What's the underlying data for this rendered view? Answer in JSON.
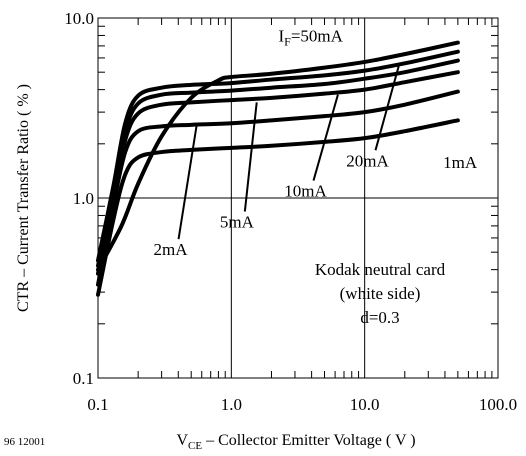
{
  "figure_id": "96 12001",
  "chart_data": {
    "type": "line",
    "title": "",
    "xlabel": {
      "main": "V",
      "sub": "CE",
      "rest": " – Collector Emitter Voltage ( V )"
    },
    "ylabel": "CTR – Current Transfer Ratio ( % )",
    "x_scale": "log",
    "y_scale": "log",
    "xlim": [
      0.1,
      100.0
    ],
    "ylim": [
      0.1,
      10.0
    ],
    "x_ticks": [
      {
        "v": 0.1,
        "label": "0.1"
      },
      {
        "v": 1.0,
        "label": "1.0"
      },
      {
        "v": 10.0,
        "label": "10.0"
      },
      {
        "v": 100.0,
        "label": "100.0"
      }
    ],
    "y_ticks": [
      {
        "v": 0.1,
        "label": "0.1"
      },
      {
        "v": 1.0,
        "label": "1.0"
      },
      {
        "v": 10.0,
        "label": "10.0"
      }
    ],
    "grid": "major",
    "series": [
      {
        "name": "1mA",
        "points": [
          [
            0.1,
            0.29
          ],
          [
            0.13,
            0.75
          ],
          [
            0.16,
            1.35
          ],
          [
            0.2,
            1.68
          ],
          [
            0.3,
            1.8
          ],
          [
            0.5,
            1.85
          ],
          [
            1.0,
            1.9
          ],
          [
            2.0,
            1.95
          ],
          [
            5.0,
            2.05
          ],
          [
            10.0,
            2.15
          ],
          [
            20.0,
            2.35
          ],
          [
            50.0,
            2.7
          ]
        ]
      },
      {
        "name": "2mA",
        "points": [
          [
            0.1,
            0.33
          ],
          [
            0.13,
            0.9
          ],
          [
            0.16,
            1.8
          ],
          [
            0.2,
            2.35
          ],
          [
            0.3,
            2.5
          ],
          [
            0.5,
            2.55
          ],
          [
            1.0,
            2.6
          ],
          [
            2.0,
            2.7
          ],
          [
            5.0,
            2.85
          ],
          [
            10.0,
            3.0
          ],
          [
            20.0,
            3.3
          ],
          [
            50.0,
            3.9
          ]
        ]
      },
      {
        "name": "5mA",
        "points": [
          [
            0.1,
            0.38
          ],
          [
            0.13,
            1.0
          ],
          [
            0.16,
            2.1
          ],
          [
            0.2,
            2.95
          ],
          [
            0.3,
            3.3
          ],
          [
            0.5,
            3.4
          ],
          [
            1.0,
            3.5
          ],
          [
            2.0,
            3.6
          ],
          [
            5.0,
            3.8
          ],
          [
            10.0,
            4.0
          ],
          [
            20.0,
            4.4
          ],
          [
            50.0,
            5.0
          ]
        ]
      },
      {
        "name": "10mA",
        "points": [
          [
            0.1,
            0.42
          ],
          [
            0.13,
            1.1
          ],
          [
            0.16,
            2.35
          ],
          [
            0.2,
            3.35
          ],
          [
            0.3,
            3.75
          ],
          [
            0.5,
            3.85
          ],
          [
            1.0,
            3.95
          ],
          [
            2.0,
            4.1
          ],
          [
            5.0,
            4.3
          ],
          [
            10.0,
            4.6
          ],
          [
            20.0,
            5.0
          ],
          [
            50.0,
            5.8
          ]
        ]
      },
      {
        "name": "20mA",
        "points": [
          [
            0.1,
            0.45
          ],
          [
            0.13,
            1.15
          ],
          [
            0.16,
            2.6
          ],
          [
            0.2,
            3.7
          ],
          [
            0.3,
            4.1
          ],
          [
            0.5,
            4.25
          ],
          [
            1.0,
            4.35
          ],
          [
            2.0,
            4.55
          ],
          [
            5.0,
            4.8
          ],
          [
            10.0,
            5.1
          ],
          [
            20.0,
            5.6
          ],
          [
            50.0,
            6.5
          ]
        ]
      },
      {
        "name": "50mA",
        "points": [
          [
            0.1,
            0.4
          ],
          [
            0.15,
            0.7
          ],
          [
            0.2,
            1.2
          ],
          [
            0.3,
            2.2
          ],
          [
            0.5,
            3.6
          ],
          [
            0.8,
            4.5
          ],
          [
            1.0,
            4.7
          ],
          [
            2.0,
            4.9
          ],
          [
            5.0,
            5.3
          ],
          [
            10.0,
            5.7
          ],
          [
            20.0,
            6.3
          ],
          [
            50.0,
            7.3
          ]
        ]
      }
    ],
    "curve_labels": [
      {
        "series": "50mA",
        "main": "I",
        "sub": "F",
        "rest": "=50mA",
        "x": 3.3,
        "y": 8.0,
        "lead_to": null
      },
      {
        "series": "20mA",
        "text": "20mA",
        "x": 10.5,
        "y": 1.62,
        "lead_to": [
          18.0,
          5.4
        ]
      },
      {
        "series": "10mA",
        "text": "10mA",
        "x": 3.6,
        "y": 1.1,
        "lead_to": [
          6.3,
          3.75
        ]
      },
      {
        "series": "5mA",
        "text": "5mA",
        "x": 1.1,
        "y": 0.74,
        "lead_to": [
          1.55,
          3.4
        ]
      },
      {
        "series": "2mA",
        "text": "2mA",
        "x": 0.35,
        "y": 0.52,
        "lead_to": [
          0.55,
          2.55
        ]
      },
      {
        "series": "1mA",
        "text": "1mA",
        "x": 52.0,
        "y": 1.58,
        "lead_to": null
      }
    ],
    "annotation": [
      "Kodak neutral card",
      "(white side)",
      "d=0.3"
    ],
    "colors": {
      "lines": "#000000",
      "background": "#ffffff"
    }
  }
}
